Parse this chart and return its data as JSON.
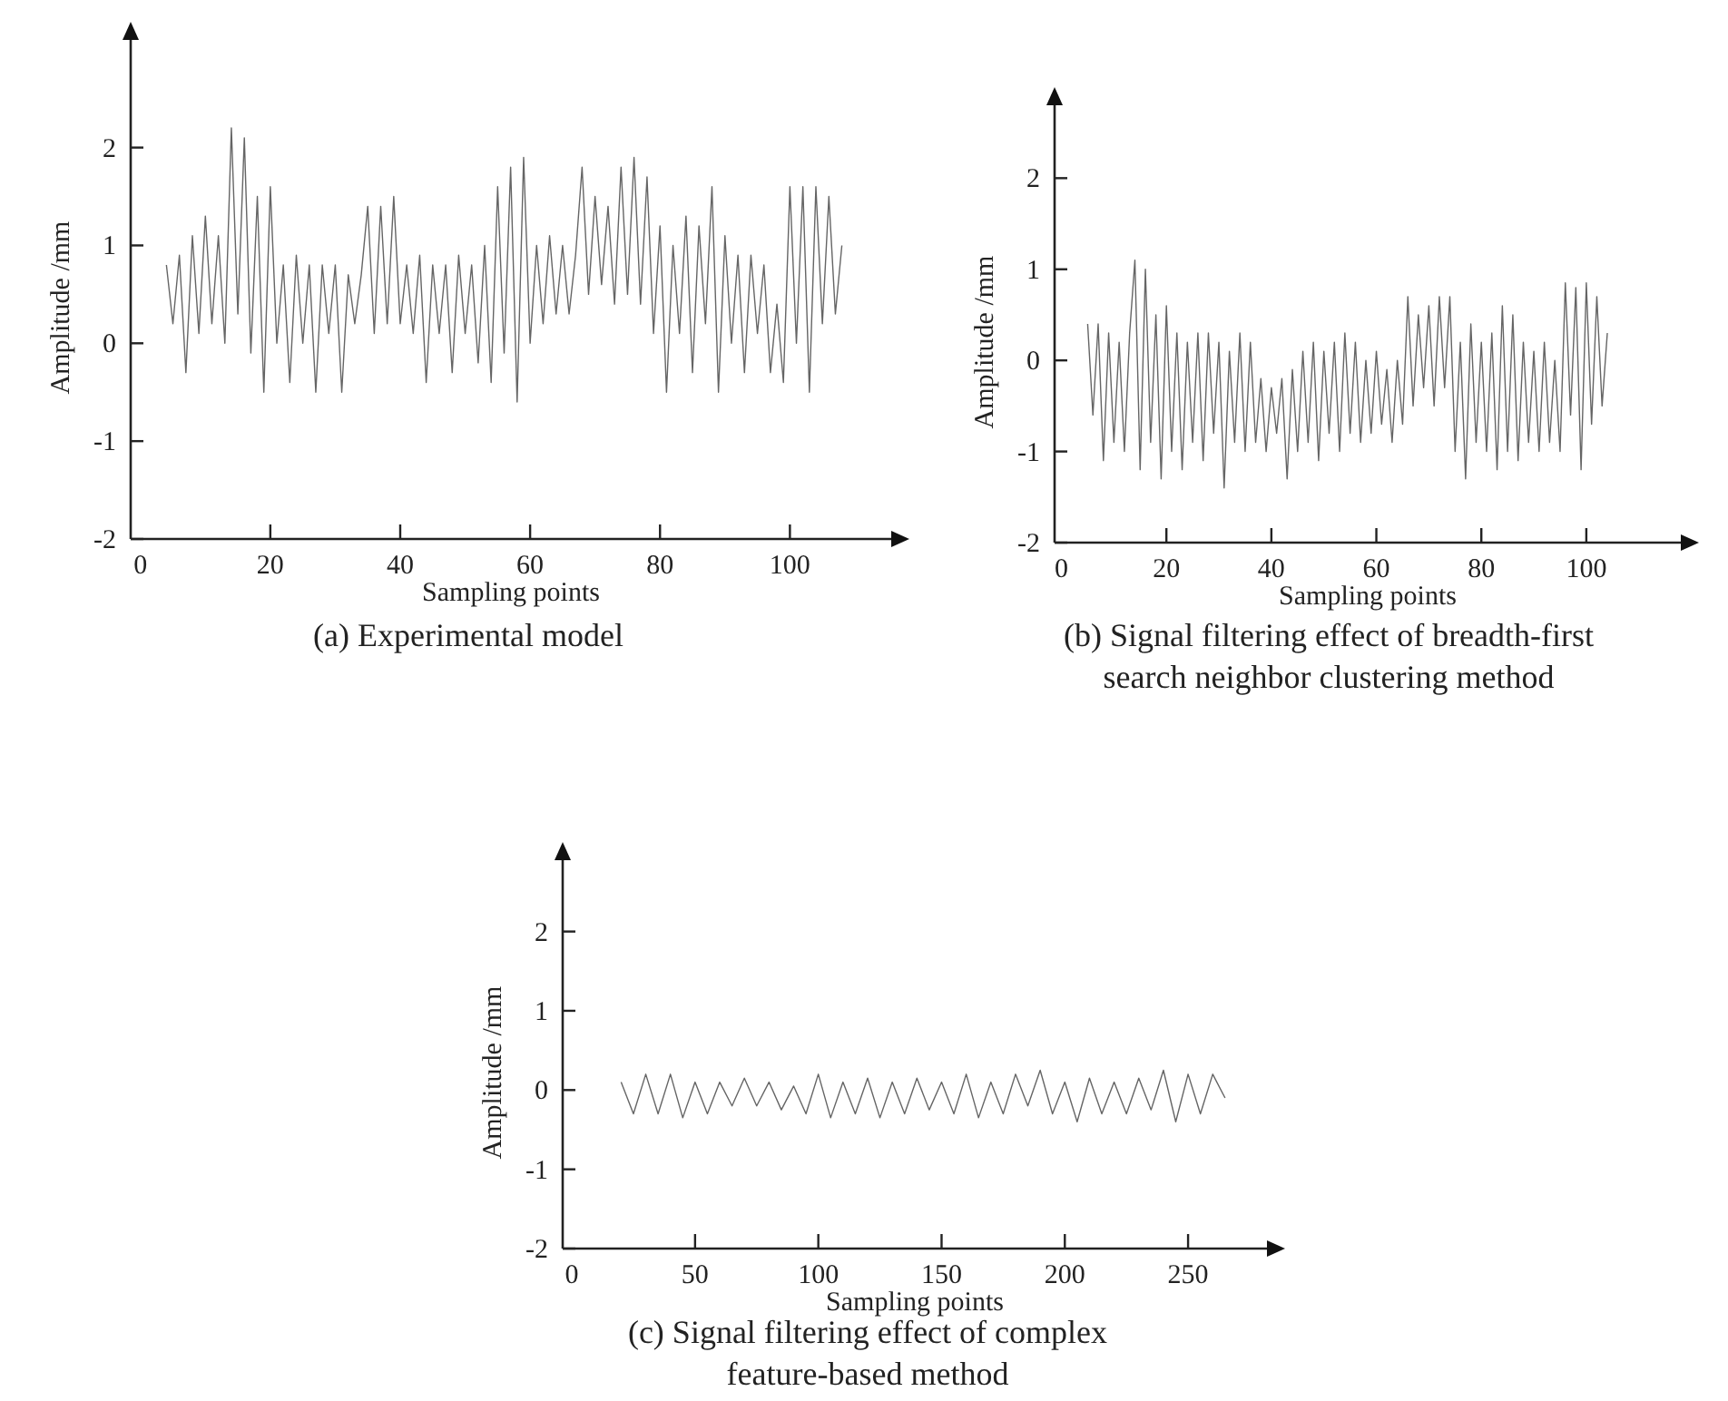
{
  "chart_data": [
    {
      "type": "line",
      "title": "(a) Experimental model",
      "xlabel": "Sampling points",
      "ylabel": "Amplitude /mm",
      "color": "#4a4a4a",
      "xlim": [
        -1.5,
        115.6
      ],
      "ylim": [
        -2,
        3.1
      ],
      "xticks": [
        0,
        20,
        40,
        60,
        80,
        100
      ],
      "yticks": [
        -2,
        -1,
        0,
        1,
        2
      ],
      "x": [
        4,
        5,
        6,
        7,
        8,
        9,
        10,
        11,
        12,
        13,
        14,
        15,
        16,
        17,
        18,
        19,
        20,
        21,
        22,
        23,
        24,
        25,
        26,
        27,
        28,
        29,
        30,
        31,
        32,
        33,
        34,
        35,
        36,
        37,
        38,
        39,
        40,
        41,
        42,
        43,
        44,
        45,
        46,
        47,
        48,
        49,
        50,
        51,
        52,
        53,
        54,
        55,
        56,
        57,
        58,
        59,
        60,
        61,
        62,
        63,
        64,
        65,
        66,
        67,
        68,
        69,
        70,
        71,
        72,
        73,
        74,
        75,
        76,
        77,
        78,
        79,
        80,
        81,
        82,
        83,
        84,
        85,
        86,
        87,
        88,
        89,
        90,
        91,
        92,
        93,
        94,
        95,
        96,
        97,
        98,
        99,
        100,
        101,
        102,
        103,
        104,
        105,
        106,
        107,
        108
      ],
      "values": [
        0.8,
        0.2,
        0.9,
        -0.3,
        1.1,
        0.1,
        1.3,
        0.2,
        1.1,
        0.0,
        2.2,
        0.3,
        2.1,
        -0.1,
        1.5,
        -0.5,
        1.6,
        0.0,
        0.8,
        -0.4,
        0.9,
        0.0,
        0.8,
        -0.5,
        0.8,
        0.1,
        0.8,
        -0.5,
        0.7,
        0.2,
        0.7,
        1.4,
        0.1,
        1.4,
        0.2,
        1.5,
        0.2,
        0.8,
        0.1,
        0.9,
        -0.4,
        0.8,
        0.1,
        0.8,
        -0.3,
        0.9,
        0.1,
        0.8,
        -0.2,
        1.0,
        -0.4,
        1.6,
        -0.1,
        1.8,
        -0.6,
        1.9,
        0.0,
        1.0,
        0.2,
        1.1,
        0.3,
        1.0,
        0.3,
        0.9,
        1.8,
        0.5,
        1.5,
        0.6,
        1.4,
        0.4,
        1.8,
        0.5,
        1.9,
        0.4,
        1.7,
        0.1,
        1.2,
        -0.5,
        1.0,
        0.1,
        1.3,
        -0.3,
        1.2,
        0.2,
        1.6,
        -0.5,
        1.1,
        0.0,
        0.9,
        -0.3,
        0.9,
        0.1,
        0.8,
        -0.3,
        0.4,
        -0.4,
        1.6,
        0.0,
        1.6,
        -0.5,
        1.6,
        0.2,
        1.5,
        0.3,
        1.0
      ]
    },
    {
      "type": "line",
      "title": "(b) Signal filtering effect of breadth-first search neighbor clustering method",
      "xlabel": "Sampling points",
      "ylabel": "Amplitude /mm",
      "color": "#4a4a4a",
      "xlim": [
        -1.3,
        118
      ],
      "ylim": [
        -2,
        2.8
      ],
      "xticks": [
        0,
        20,
        40,
        60,
        80,
        100
      ],
      "yticks": [
        -2,
        -1,
        0,
        1,
        2
      ],
      "x": [
        5,
        6,
        7,
        8,
        9,
        10,
        11,
        12,
        13,
        14,
        15,
        16,
        17,
        18,
        19,
        20,
        21,
        22,
        23,
        24,
        25,
        26,
        27,
        28,
        29,
        30,
        31,
        32,
        33,
        34,
        35,
        36,
        37,
        38,
        39,
        40,
        41,
        42,
        43,
        44,
        45,
        46,
        47,
        48,
        49,
        50,
        51,
        52,
        53,
        54,
        55,
        56,
        57,
        58,
        59,
        60,
        61,
        62,
        63,
        64,
        65,
        66,
        67,
        68,
        69,
        70,
        71,
        72,
        73,
        74,
        75,
        76,
        77,
        78,
        79,
        80,
        81,
        82,
        83,
        84,
        85,
        86,
        87,
        88,
        89,
        90,
        91,
        92,
        93,
        94,
        95,
        96,
        97,
        98,
        99,
        100,
        101,
        102,
        103,
        104
      ],
      "values": [
        0.4,
        -0.6,
        0.4,
        -1.1,
        0.3,
        -0.9,
        0.2,
        -1.0,
        0.3,
        1.1,
        -1.2,
        1.0,
        -0.9,
        0.5,
        -1.3,
        0.6,
        -1.0,
        0.3,
        -1.2,
        0.2,
        -0.9,
        0.3,
        -1.1,
        0.3,
        -0.8,
        0.2,
        -1.4,
        0.1,
        -0.9,
        0.3,
        -1.0,
        0.2,
        -0.9,
        -0.2,
        -1.0,
        -0.3,
        -0.8,
        -0.2,
        -1.3,
        -0.1,
        -1.0,
        0.1,
        -0.9,
        0.2,
        -1.1,
        0.1,
        -0.8,
        0.2,
        -1.0,
        0.3,
        -0.8,
        0.2,
        -0.9,
        0.0,
        -0.8,
        0.1,
        -0.7,
        -0.1,
        -0.9,
        0.0,
        -0.7,
        0.7,
        -0.5,
        0.5,
        -0.3,
        0.6,
        -0.5,
        0.7,
        -0.3,
        0.7,
        -1.0,
        0.2,
        -1.3,
        0.4,
        -0.9,
        0.2,
        -1.0,
        0.3,
        -1.2,
        0.6,
        -1.0,
        0.5,
        -1.1,
        0.2,
        -0.9,
        0.1,
        -1.0,
        0.2,
        -0.9,
        0.0,
        -1.0,
        0.85,
        -0.6,
        0.8,
        -1.2,
        0.85,
        -0.7,
        0.7,
        -0.5,
        0.3
      ]
    },
    {
      "type": "line",
      "title": "(c) Signal filtering effect of complex feature-based method",
      "xlabel": "Sampling points",
      "ylabel": "Amplitude /mm",
      "color": "#4a4a4a",
      "xlim": [
        -3.7,
        282
      ],
      "ylim": [
        -2,
        2.9
      ],
      "xticks": [
        0,
        50,
        100,
        150,
        200,
        250
      ],
      "yticks": [
        -2,
        -1,
        0,
        1,
        2
      ],
      "x": [
        20,
        25,
        30,
        35,
        40,
        45,
        50,
        55,
        60,
        65,
        70,
        75,
        80,
        85,
        90,
        95,
        100,
        105,
        110,
        115,
        120,
        125,
        130,
        135,
        140,
        145,
        150,
        155,
        160,
        165,
        170,
        175,
        180,
        185,
        190,
        195,
        200,
        205,
        210,
        215,
        220,
        225,
        230,
        235,
        240,
        245,
        250,
        255,
        260,
        265
      ],
      "values": [
        0.1,
        -0.3,
        0.2,
        -0.3,
        0.2,
        -0.35,
        0.1,
        -0.3,
        0.1,
        -0.2,
        0.15,
        -0.2,
        0.1,
        -0.25,
        0.05,
        -0.3,
        0.2,
        -0.35,
        0.1,
        -0.3,
        0.15,
        -0.35,
        0.1,
        -0.3,
        0.15,
        -0.25,
        0.1,
        -0.3,
        0.2,
        -0.35,
        0.1,
        -0.3,
        0.2,
        -0.2,
        0.25,
        -0.3,
        0.1,
        -0.4,
        0.15,
        -0.3,
        0.1,
        -0.3,
        0.15,
        -0.25,
        0.25,
        -0.4,
        0.2,
        -0.3,
        0.2,
        -0.1
      ]
    }
  ]
}
